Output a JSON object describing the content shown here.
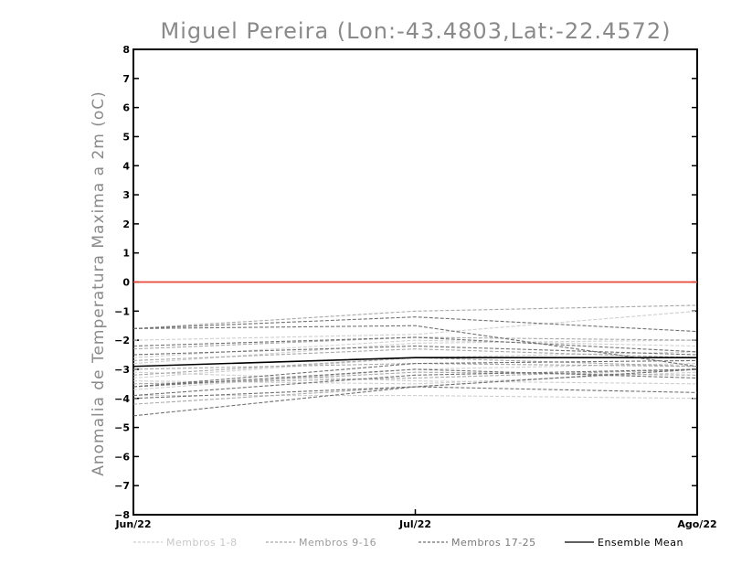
{
  "chart_data": {
    "type": "line",
    "title": "Miguel Pereira (Lon:-43.4803,Lat:-22.4572)",
    "xlabel": "",
    "ylabel": "Anomalia de Temperatura Maxima a 2m (oC)",
    "categories": [
      "Jun/22",
      "Jul/22",
      "Ago/22"
    ],
    "ylim": [
      -8,
      8
    ],
    "yticks": [
      "8",
      "7",
      "6",
      "5",
      "4",
      "3",
      "2",
      "1",
      "0",
      "-1",
      "-2",
      "-3",
      "-4",
      "-5",
      "-6",
      "-7",
      "-8"
    ],
    "reference_line": {
      "y": 0,
      "color": "#e8483a"
    },
    "legend_placement": "bottom",
    "groups": [
      {
        "name": "Membros 1-8",
        "color": "#cfcfcf",
        "dash": "4,2"
      },
      {
        "name": "Membros 9-16",
        "color": "#a8a8a8",
        "dash": "4,2"
      },
      {
        "name": "Membros 17-25",
        "color": "#707070",
        "dash": "4,2"
      },
      {
        "name": "Ensemble Mean",
        "color": "#000000",
        "dash": ""
      }
    ],
    "series": [
      {
        "group": 0,
        "values": [
          -2.0,
          -1.8,
          -1.0
        ]
      },
      {
        "group": 0,
        "values": [
          -2.6,
          -2.0,
          -2.2
        ]
      },
      {
        "group": 0,
        "values": [
          -3.3,
          -2.6,
          -2.4
        ]
      },
      {
        "group": 0,
        "values": [
          -3.7,
          -3.0,
          -2.8
        ]
      },
      {
        "group": 0,
        "values": [
          -3.9,
          -3.9,
          -4.0
        ]
      },
      {
        "group": 0,
        "values": [
          -3.1,
          -3.4,
          -3.5
        ]
      },
      {
        "group": 0,
        "values": [
          -2.8,
          -2.1,
          -2.0
        ]
      },
      {
        "group": 0,
        "values": [
          -3.4,
          -3.5,
          -3.1
        ]
      },
      {
        "group": 1,
        "values": [
          -1.6,
          -1.0,
          -0.8
        ]
      },
      {
        "group": 1,
        "values": [
          -2.3,
          -1.9,
          -2.0
        ]
      },
      {
        "group": 1,
        "values": [
          -2.7,
          -2.3,
          -2.6
        ]
      },
      {
        "group": 1,
        "values": [
          -3.2,
          -2.6,
          -2.9
        ]
      },
      {
        "group": 1,
        "values": [
          -3.6,
          -3.1,
          -3.2
        ]
      },
      {
        "group": 1,
        "values": [
          -3.5,
          -3.3,
          -3.0
        ]
      },
      {
        "group": 1,
        "values": [
          -4.2,
          -3.6,
          -3.0
        ]
      },
      {
        "group": 1,
        "values": [
          -3.0,
          -2.8,
          -2.9
        ]
      },
      {
        "group": 2,
        "values": [
          -1.6,
          -1.5,
          -2.9
        ]
      },
      {
        "group": 2,
        "values": [
          -1.6,
          -1.2,
          -1.7
        ]
      },
      {
        "group": 2,
        "values": [
          -2.2,
          -1.9,
          -2.4
        ]
      },
      {
        "group": 2,
        "values": [
          -2.5,
          -2.2,
          -2.5
        ]
      },
      {
        "group": 2,
        "values": [
          -3.6,
          -2.8,
          -2.7
        ]
      },
      {
        "group": 2,
        "values": [
          -3.9,
          -3.2,
          -3.0
        ]
      },
      {
        "group": 2,
        "values": [
          -4.6,
          -3.6,
          -3.8
        ]
      },
      {
        "group": 2,
        "values": [
          -3.6,
          -3.0,
          -3.3
        ]
      },
      {
        "group": 2,
        "values": [
          -4.0,
          -3.6,
          -3.0
        ]
      },
      {
        "group": 3,
        "values": [
          -2.9,
          -2.6,
          -2.6
        ]
      }
    ]
  }
}
